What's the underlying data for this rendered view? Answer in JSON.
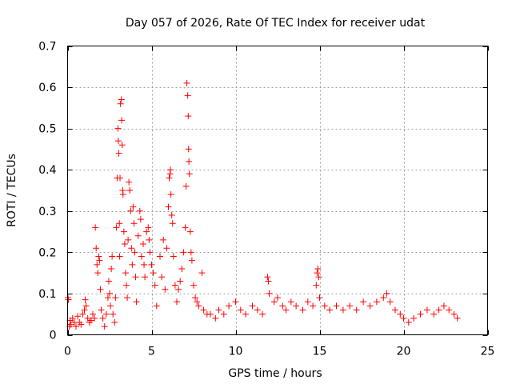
{
  "chart_data": {
    "type": "scatter",
    "title": "Day 057 of 2026, Rate Of TEC Index for receiver udat",
    "xlabel": "GPS time / hours",
    "ylabel": "ROTI / TECUs",
    "xlim": [
      0,
      25
    ],
    "ylim": [
      0,
      0.7
    ],
    "xticks": [
      0,
      5,
      10,
      15,
      20,
      25
    ],
    "xtick_labels": [
      "0",
      "5",
      "10",
      "15",
      "20",
      "25"
    ],
    "yticks": [
      0,
      0.1,
      0.2,
      0.3,
      0.4,
      0.5,
      0.6,
      0.7
    ],
    "ytick_labels": [
      "0",
      "0.1",
      "0.2",
      "0.3",
      "0.4",
      "0.5",
      "0.6",
      "0.7"
    ],
    "grid": true,
    "marker": "plus",
    "colors": {
      "series": "#ff0000",
      "grid": "#a0a0a0",
      "axis": "#000000"
    },
    "series": [
      {
        "name": "ROTI",
        "points": [
          [
            0.02,
            0.09
          ],
          [
            0.05,
            0.085
          ],
          [
            0.1,
            0.02
          ],
          [
            0.15,
            0.035
          ],
          [
            0.2,
            0.025
          ],
          [
            0.3,
            0.04
          ],
          [
            0.4,
            0.03
          ],
          [
            0.5,
            0.02
          ],
          [
            0.6,
            0.045
          ],
          [
            0.7,
            0.03
          ],
          [
            0.8,
            0.025
          ],
          [
            0.9,
            0.05
          ],
          [
            1.0,
            0.06
          ],
          [
            1.05,
            0.085
          ],
          [
            1.1,
            0.07
          ],
          [
            1.2,
            0.04
          ],
          [
            1.3,
            0.03
          ],
          [
            1.4,
            0.035
          ],
          [
            1.5,
            0.05
          ],
          [
            1.6,
            0.04
          ],
          [
            1.65,
            0.26
          ],
          [
            1.7,
            0.21
          ],
          [
            1.75,
            0.17
          ],
          [
            1.8,
            0.15
          ],
          [
            1.85,
            0.19
          ],
          [
            1.9,
            0.18
          ],
          [
            1.95,
            0.11
          ],
          [
            2.0,
            0.06
          ],
          [
            2.1,
            0.04
          ],
          [
            2.2,
            0.02
          ],
          [
            2.3,
            0.05
          ],
          [
            2.4,
            0.09
          ],
          [
            2.45,
            0.13
          ],
          [
            2.5,
            0.1
          ],
          [
            2.55,
            0.07
          ],
          [
            2.6,
            0.16
          ],
          [
            2.65,
            0.19
          ],
          [
            2.7,
            0.05
          ],
          [
            2.8,
            0.03
          ],
          [
            2.85,
            0.09
          ],
          [
            2.9,
            0.26
          ],
          [
            2.95,
            0.38
          ],
          [
            3.0,
            0.5
          ],
          [
            3.02,
            0.47
          ],
          [
            3.05,
            0.44
          ],
          [
            3.08,
            0.27
          ],
          [
            3.1,
            0.19
          ],
          [
            3.12,
            0.38
          ],
          [
            3.15,
            0.56
          ],
          [
            3.2,
            0.57
          ],
          [
            3.22,
            0.52
          ],
          [
            3.25,
            0.46
          ],
          [
            3.28,
            0.35
          ],
          [
            3.3,
            0.34
          ],
          [
            3.35,
            0.25
          ],
          [
            3.4,
            0.22
          ],
          [
            3.45,
            0.15
          ],
          [
            3.5,
            0.12
          ],
          [
            3.55,
            0.09
          ],
          [
            3.6,
            0.23
          ],
          [
            3.65,
            0.37
          ],
          [
            3.7,
            0.35
          ],
          [
            3.75,
            0.3
          ],
          [
            3.8,
            0.21
          ],
          [
            3.85,
            0.17
          ],
          [
            3.9,
            0.31
          ],
          [
            3.95,
            0.27
          ],
          [
            4.0,
            0.2
          ],
          [
            4.05,
            0.14
          ],
          [
            4.1,
            0.08
          ],
          [
            4.2,
            0.24
          ],
          [
            4.3,
            0.3
          ],
          [
            4.35,
            0.28
          ],
          [
            4.4,
            0.19
          ],
          [
            4.5,
            0.22
          ],
          [
            4.55,
            0.17
          ],
          [
            4.6,
            0.14
          ],
          [
            4.7,
            0.25
          ],
          [
            4.8,
            0.26
          ],
          [
            4.85,
            0.23
          ],
          [
            4.9,
            0.2
          ],
          [
            5.0,
            0.17
          ],
          [
            5.1,
            0.15
          ],
          [
            5.2,
            0.12
          ],
          [
            5.3,
            0.07
          ],
          [
            5.5,
            0.19
          ],
          [
            5.6,
            0.14
          ],
          [
            5.7,
            0.23
          ],
          [
            5.8,
            0.11
          ],
          [
            5.9,
            0.21
          ],
          [
            6.0,
            0.31
          ],
          [
            6.05,
            0.38
          ],
          [
            6.1,
            0.39
          ],
          [
            6.12,
            0.4
          ],
          [
            6.15,
            0.34
          ],
          [
            6.2,
            0.29
          ],
          [
            6.25,
            0.27
          ],
          [
            6.3,
            0.19
          ],
          [
            6.4,
            0.12
          ],
          [
            6.5,
            0.08
          ],
          [
            6.6,
            0.11
          ],
          [
            6.7,
            0.13
          ],
          [
            6.8,
            0.16
          ],
          [
            6.9,
            0.2
          ],
          [
            7.0,
            0.26
          ],
          [
            7.05,
            0.36
          ],
          [
            7.1,
            0.61
          ],
          [
            7.15,
            0.58
          ],
          [
            7.18,
            0.53
          ],
          [
            7.2,
            0.45
          ],
          [
            7.22,
            0.42
          ],
          [
            7.25,
            0.39
          ],
          [
            7.3,
            0.25
          ],
          [
            7.35,
            0.2
          ],
          [
            7.4,
            0.18
          ],
          [
            7.5,
            0.12
          ],
          [
            7.6,
            0.09
          ],
          [
            7.7,
            0.08
          ],
          [
            7.8,
            0.07
          ],
          [
            8.0,
            0.15
          ],
          [
            8.1,
            0.06
          ],
          [
            8.3,
            0.05
          ],
          [
            8.5,
            0.05
          ],
          [
            8.8,
            0.04
          ],
          [
            9.0,
            0.06
          ],
          [
            9.3,
            0.05
          ],
          [
            9.6,
            0.07
          ],
          [
            10.0,
            0.08
          ],
          [
            10.3,
            0.06
          ],
          [
            10.6,
            0.05
          ],
          [
            11.0,
            0.07
          ],
          [
            11.3,
            0.06
          ],
          [
            11.6,
            0.05
          ],
          [
            11.9,
            0.14
          ],
          [
            11.95,
            0.13
          ],
          [
            12.0,
            0.1
          ],
          [
            12.3,
            0.08
          ],
          [
            12.5,
            0.09
          ],
          [
            12.8,
            0.07
          ],
          [
            13.0,
            0.06
          ],
          [
            13.3,
            0.08
          ],
          [
            13.6,
            0.07
          ],
          [
            14.0,
            0.06
          ],
          [
            14.3,
            0.08
          ],
          [
            14.6,
            0.07
          ],
          [
            14.8,
            0.12
          ],
          [
            14.85,
            0.15
          ],
          [
            14.9,
            0.16
          ],
          [
            14.95,
            0.14
          ],
          [
            15.0,
            0.09
          ],
          [
            15.3,
            0.07
          ],
          [
            15.6,
            0.06
          ],
          [
            16.0,
            0.07
          ],
          [
            16.4,
            0.06
          ],
          [
            16.8,
            0.07
          ],
          [
            17.2,
            0.06
          ],
          [
            17.6,
            0.08
          ],
          [
            18.0,
            0.07
          ],
          [
            18.4,
            0.08
          ],
          [
            18.8,
            0.09
          ],
          [
            19.0,
            0.1
          ],
          [
            19.2,
            0.08
          ],
          [
            19.5,
            0.06
          ],
          [
            19.8,
            0.05
          ],
          [
            20.0,
            0.04
          ],
          [
            20.3,
            0.03
          ],
          [
            20.6,
            0.04
          ],
          [
            21.0,
            0.05
          ],
          [
            21.4,
            0.06
          ],
          [
            21.8,
            0.05
          ],
          [
            22.1,
            0.06
          ],
          [
            22.4,
            0.07
          ],
          [
            22.7,
            0.06
          ],
          [
            23.0,
            0.05
          ],
          [
            23.2,
            0.04
          ]
        ]
      }
    ]
  }
}
